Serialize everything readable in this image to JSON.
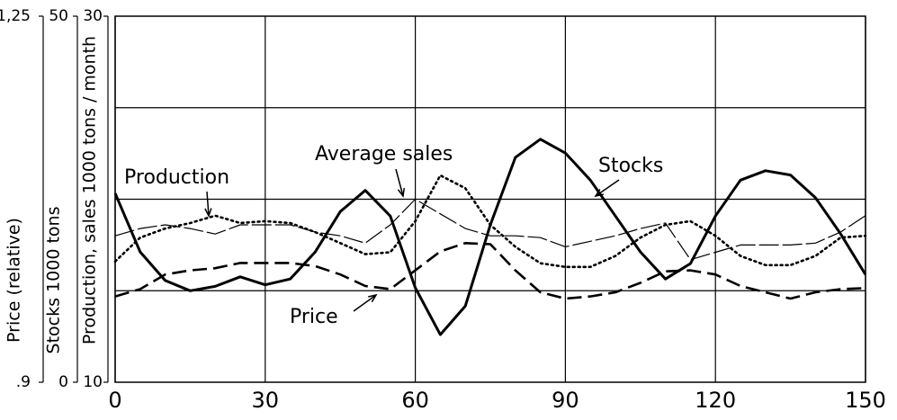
{
  "chart_data": {
    "type": "line",
    "x": [
      0,
      5,
      10,
      15,
      20,
      25,
      30,
      35,
      40,
      45,
      50,
      55,
      60,
      65,
      70,
      75,
      80,
      85,
      90,
      95,
      100,
      105,
      110,
      115,
      120,
      125,
      130,
      135,
      140,
      145,
      150
    ],
    "xlim": [
      0,
      150
    ],
    "xticks": [
      0,
      30,
      60,
      90,
      120,
      150
    ],
    "grid": true,
    "grid_y": [
      15,
      20,
      25
    ],
    "y_axes": [
      {
        "label": "Price (relative)",
        "lim": [
          0.9,
          1.25
        ],
        "ticks": [
          {
            "value": 0.9,
            "label": ".9"
          },
          {
            "value": 1.25,
            "label": "1,25"
          }
        ]
      },
      {
        "label": "Stocks 1000 tons",
        "lim": [
          0,
          50
        ],
        "ticks": [
          0,
          50
        ]
      },
      {
        "label": "Production, sales 1000 tons / month",
        "lim": [
          10,
          30
        ],
        "ticks": [
          10,
          30
        ]
      }
    ],
    "series": [
      {
        "name": "Production",
        "color": "#000000",
        "style": "dotted",
        "axis": 2,
        "values": [
          16.6,
          17.9,
          18.4,
          18.7,
          19.1,
          18.7,
          18.8,
          18.7,
          18.2,
          17.6,
          17.0,
          17.1,
          18.8,
          21.3,
          20.6,
          18.6,
          17.4,
          16.5,
          16.3,
          16.3,
          16.9,
          17.9,
          18.6,
          18.8,
          18.0,
          16.9,
          16.4,
          16.4,
          16.9,
          17.9,
          18.0
        ]
      },
      {
        "name": "Average sales",
        "color": "#000000",
        "style": "thin-dashed",
        "axis": 2,
        "values": [
          18.0,
          18.4,
          18.6,
          18.4,
          18.1,
          18.6,
          18.6,
          18.6,
          18.2,
          18.0,
          17.6,
          18.6,
          20.0,
          19.2,
          18.4,
          18.0,
          18.0,
          17.9,
          17.4,
          17.7,
          18.0,
          18.4,
          18.7,
          16.7,
          17.1,
          17.5,
          17.5,
          17.5,
          17.6,
          18.2,
          19.1
        ]
      },
      {
        "name": "Price",
        "color": "#000000",
        "style": "dashed",
        "axis": 0,
        "values": [
          0.982,
          0.989,
          1.003,
          1.007,
          1.009,
          1.014,
          1.014,
          1.014,
          1.011,
          1.003,
          0.992,
          0.989,
          1.007,
          1.025,
          1.033,
          1.032,
          1.007,
          0.986,
          0.98,
          0.982,
          0.986,
          0.995,
          1.006,
          1.007,
          1.003,
          0.992,
          0.986,
          0.98,
          0.986,
          0.989,
          0.99
        ]
      },
      {
        "name": "Stocks",
        "color": "#000000",
        "style": "solid",
        "axis": 1,
        "values": [
          25.8,
          17.8,
          13.9,
          12.5,
          13.1,
          14.4,
          13.3,
          14.1,
          17.8,
          23.3,
          26.2,
          22.7,
          12.9,
          6.5,
          10.4,
          21.5,
          30.7,
          33.2,
          31.3,
          27.6,
          22.7,
          17.8,
          14.1,
          16.2,
          22.7,
          27.6,
          28.9,
          28.3,
          25.2,
          20.3,
          14.7
        ]
      }
    ]
  }
}
